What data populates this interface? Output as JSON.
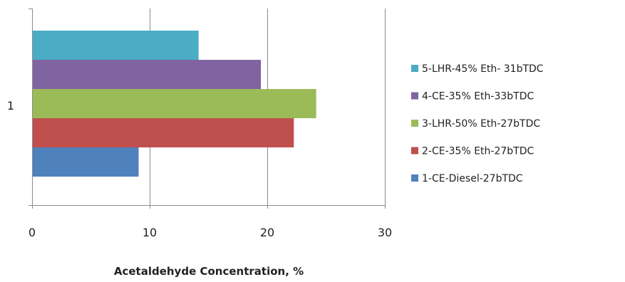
{
  "chart_data": {
    "type": "bar",
    "orientation": "horizontal",
    "categories": [
      "1"
    ],
    "series": [
      {
        "name": "1-CE-Diesel-27bTDC",
        "values": [
          9
        ],
        "color": "#4F81BD"
      },
      {
        "name": "2-CE-35% Eth-27bTDC",
        "values": [
          22.2
        ],
        "color": "#C0504D"
      },
      {
        "name": "3-LHR-50% Eth-27bTDC",
        "values": [
          24.1
        ],
        "color": "#9BBB59"
      },
      {
        "name": "4-CE-35% Eth-33bTDC",
        "values": [
          19.4
        ],
        "color": "#8064A2"
      },
      {
        "name": "5-LHR-45% Eth- 31bTDC",
        "values": [
          14.1
        ],
        "color": "#4BACC6"
      }
    ],
    "title": "",
    "xlabel": "Acetaldehyde Concentration, %",
    "ylabel": "",
    "xlim": [
      0,
      30
    ],
    "xticks": [
      0,
      10,
      20,
      30
    ],
    "grid": true,
    "legend_position": "right",
    "legend_order": "reversed"
  }
}
